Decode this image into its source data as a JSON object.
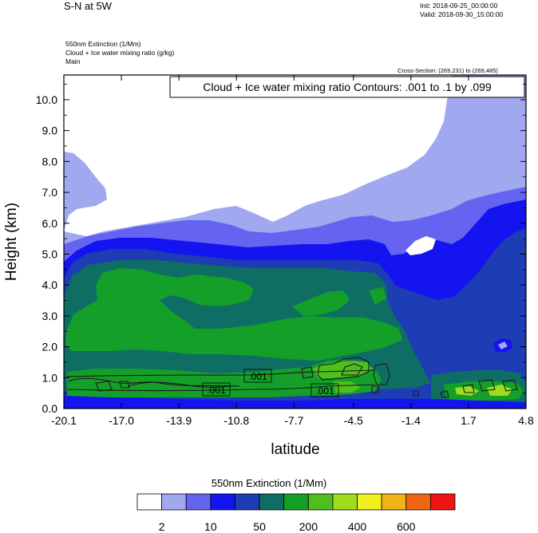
{
  "header": {
    "title": "S-N at 5W",
    "init": "Init: 2018-09-25_00:00:00",
    "valid": "Valid: 2018-09-30_15:00:00",
    "variables": [
      "550nm Extinction   (1/Mm)",
      "Cloud + Ice water mixing ratio   (g/kg)",
      "Main"
    ],
    "cross_section": "Cross-Section: (269,231) to (269,485)"
  },
  "chart_data": {
    "type": "heatmap",
    "contour_label": "Cloud + Ice water mixing ratio Contours: .001 to .1 by .099",
    "xlabel": "latitude",
    "ylabel": "Height (km)",
    "x_ticks": [
      "-20.1",
      "-17.0",
      "-13.9",
      "-10.8",
      "-7.7",
      "-4.5",
      "-1.4",
      "1.7",
      "4.8"
    ],
    "y_ticks": [
      "0.0",
      "1.0",
      "2.0",
      "3.0",
      "4.0",
      "5.0",
      "6.0",
      "7.0",
      "8.0",
      "9.0",
      "10.0"
    ],
    "xlim": [
      -20.1,
      4.8
    ],
    "ylim": [
      0,
      10.8
    ],
    "contour_values": [
      ".001",
      ".001",
      ".001"
    ],
    "colorbar": {
      "title": "550nm Extinction  (1/Mm)",
      "colors": [
        "#ffffff",
        "#a0a8f0",
        "#6464f0",
        "#1414f0",
        "#1e3cb4",
        "#0f6e64",
        "#14a028",
        "#50be1e",
        "#a0dc1e",
        "#f0f01e",
        "#f0b414",
        "#f06414",
        "#f01414"
      ],
      "tick_labels": [
        "2",
        "10",
        "50",
        "200",
        "400",
        "600"
      ]
    }
  }
}
